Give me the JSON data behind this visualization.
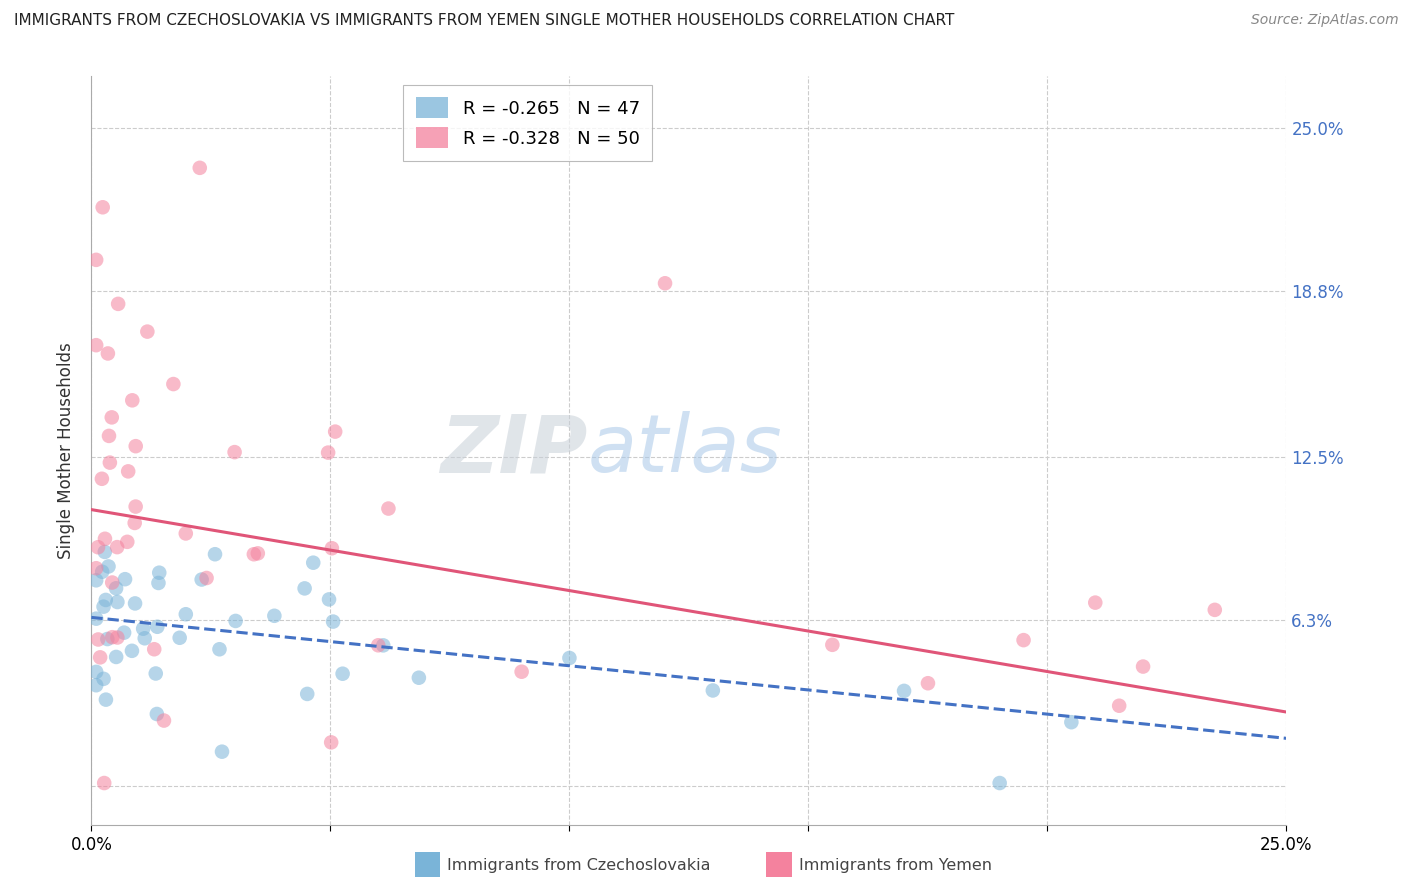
{
  "title": "IMMIGRANTS FROM CZECHOSLOVAKIA VS IMMIGRANTS FROM YEMEN SINGLE MOTHER HOUSEHOLDS CORRELATION CHART",
  "source": "Source: ZipAtlas.com",
  "ylabel": "Single Mother Households",
  "xlim": [
    0.0,
    0.25
  ],
  "ylim": [
    -0.015,
    0.27
  ],
  "ytick_vals": [
    0.0,
    0.063,
    0.125,
    0.188,
    0.25
  ],
  "ytick_labels_right": [
    "",
    "6.3%",
    "12.5%",
    "18.8%",
    "25.0%"
  ],
  "xtick_vals": [
    0.0,
    0.05,
    0.1,
    0.15,
    0.2,
    0.25
  ],
  "watermark_zip": "ZIP",
  "watermark_atlas": "atlas",
  "watermark_zip_color": "#c8d0d8",
  "watermark_atlas_color": "#a8c8e8",
  "background_color": "#ffffff",
  "grid_color": "#cccccc",
  "series_czechoslovakia": {
    "color": "#7ab4d8",
    "trend_color": "#4472c4",
    "alpha": 0.55,
    "trend_linestyle": "--"
  },
  "series_yemen": {
    "color": "#f4829e",
    "trend_color": "#e05578",
    "alpha": 0.55,
    "trend_linestyle": "-"
  },
  "legend_cz_label": "R = -0.265   N = 47",
  "legend_ye_label": "R = -0.328   N = 50",
  "bottom_label_cz": "Immigrants from Czechoslovakia",
  "bottom_label_ye": "Immigrants from Yemen",
  "title_fontsize": 11,
  "source_fontsize": 10,
  "axis_label_fontsize": 12,
  "tick_fontsize": 12,
  "legend_fontsize": 13,
  "right_tick_color": "#4472c4"
}
